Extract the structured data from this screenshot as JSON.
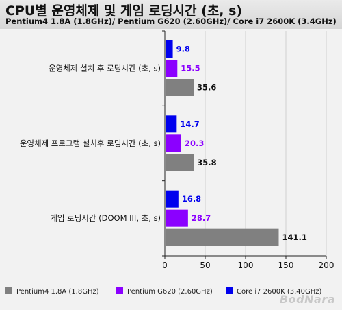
{
  "title": "CPU별 운영체제 및 게임 로딩시간 (초, s)",
  "subtitle": "Pentium4 1.8A (1.8GHz)/ Pentium G620 (2.60GHz)/ Core i7 2600K (3.4GHz)",
  "watermark": "BodNara",
  "colors": {
    "series_0": "#808080",
    "series_1": "#8b00ff",
    "series_2": "#0000ee"
  },
  "chart_data": {
    "type": "bar",
    "orientation": "horizontal",
    "categories": [
      "운영체제 설치 후 로딩시간 (초, s)",
      "운영체제 프로그램 설치후 로딩시간 (초, s)",
      "게임 로딩시간 (DOOM III, 초, s)"
    ],
    "series": [
      {
        "name": "Pentium4 1.8A (1.8GHz)",
        "values": [
          35.6,
          35.8,
          141.1
        ]
      },
      {
        "name": "Pentium G620 (2.60GHz)",
        "values": [
          15.5,
          20.3,
          28.7
        ]
      },
      {
        "name": "Core i7 2600K (3.40GHz)",
        "values": [
          9.8,
          14.7,
          16.8
        ]
      }
    ],
    "xlim": [
      0,
      200
    ],
    "xticks": [
      0,
      50,
      100,
      150,
      200
    ],
    "legend_position": "bottom",
    "grid": true
  }
}
